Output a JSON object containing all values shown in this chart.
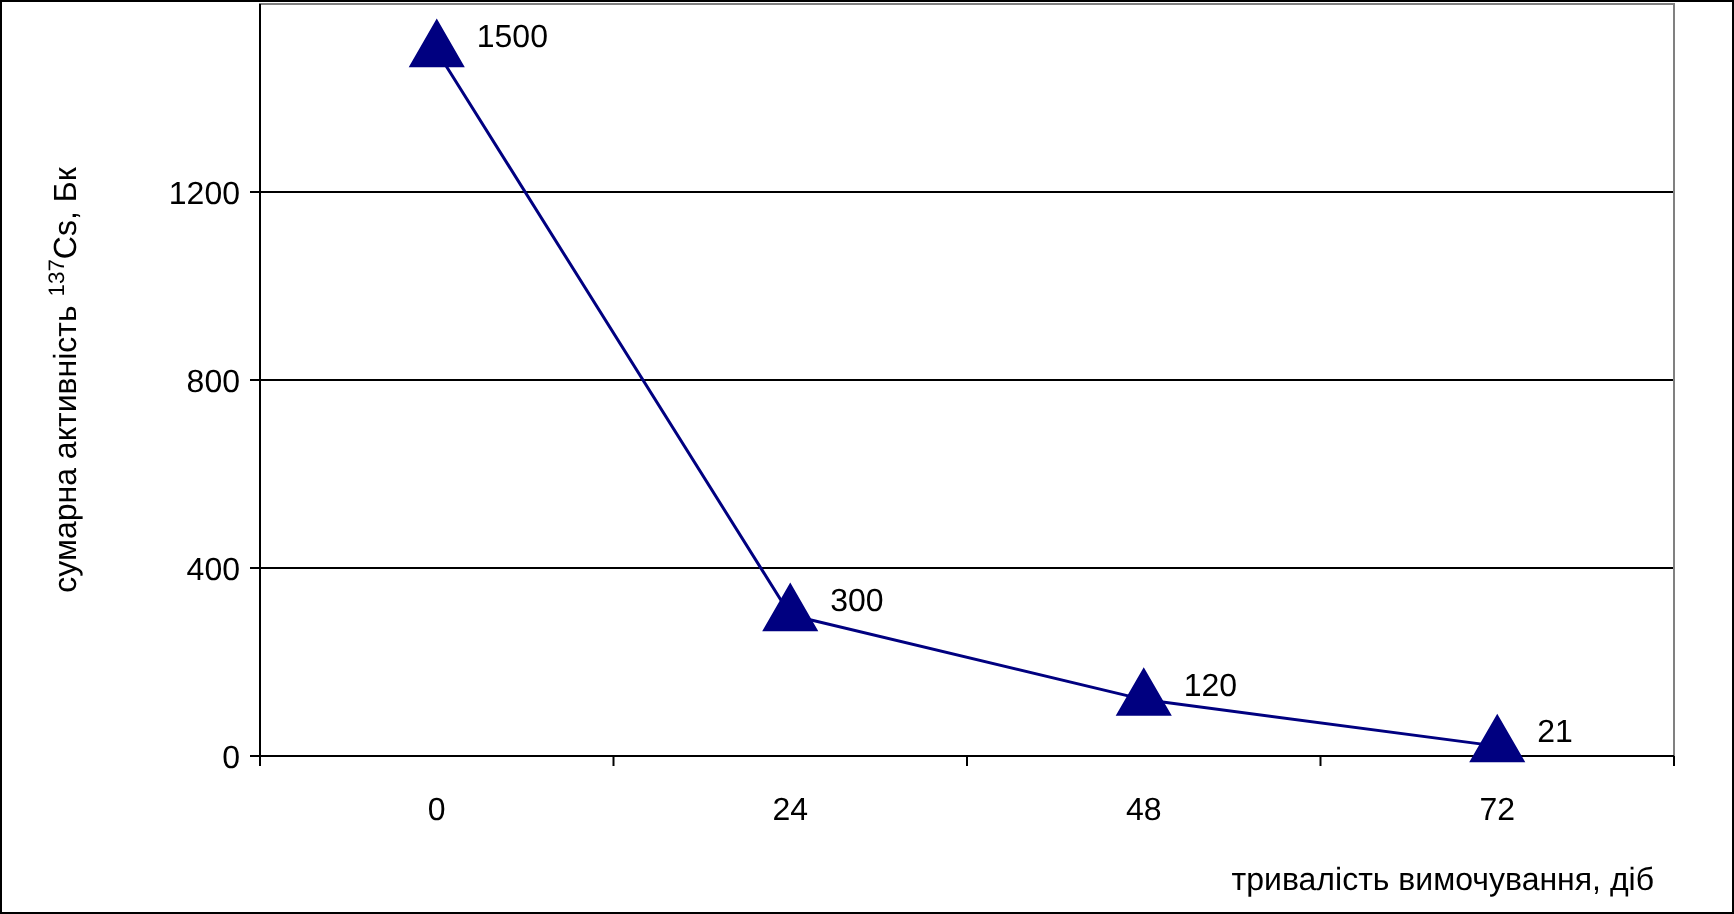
{
  "chart_data": {
    "type": "line",
    "xlabel": "тривалість вимочування, діб",
    "ylabel": "сумарна активність $^{137}$Cs, Бк",
    "categories": [
      "0",
      "24",
      "48",
      "72"
    ],
    "series": [
      {
        "color": "#000080",
        "values": [
          1500,
          300,
          120,
          21
        ]
      }
    ],
    "ylim": [
      0,
      1600
    ],
    "yticks": [
      0,
      400,
      800,
      1200
    ],
    "grid": "y",
    "data_labels": true,
    "marker": "triangle",
    "line_style": "solid"
  }
}
